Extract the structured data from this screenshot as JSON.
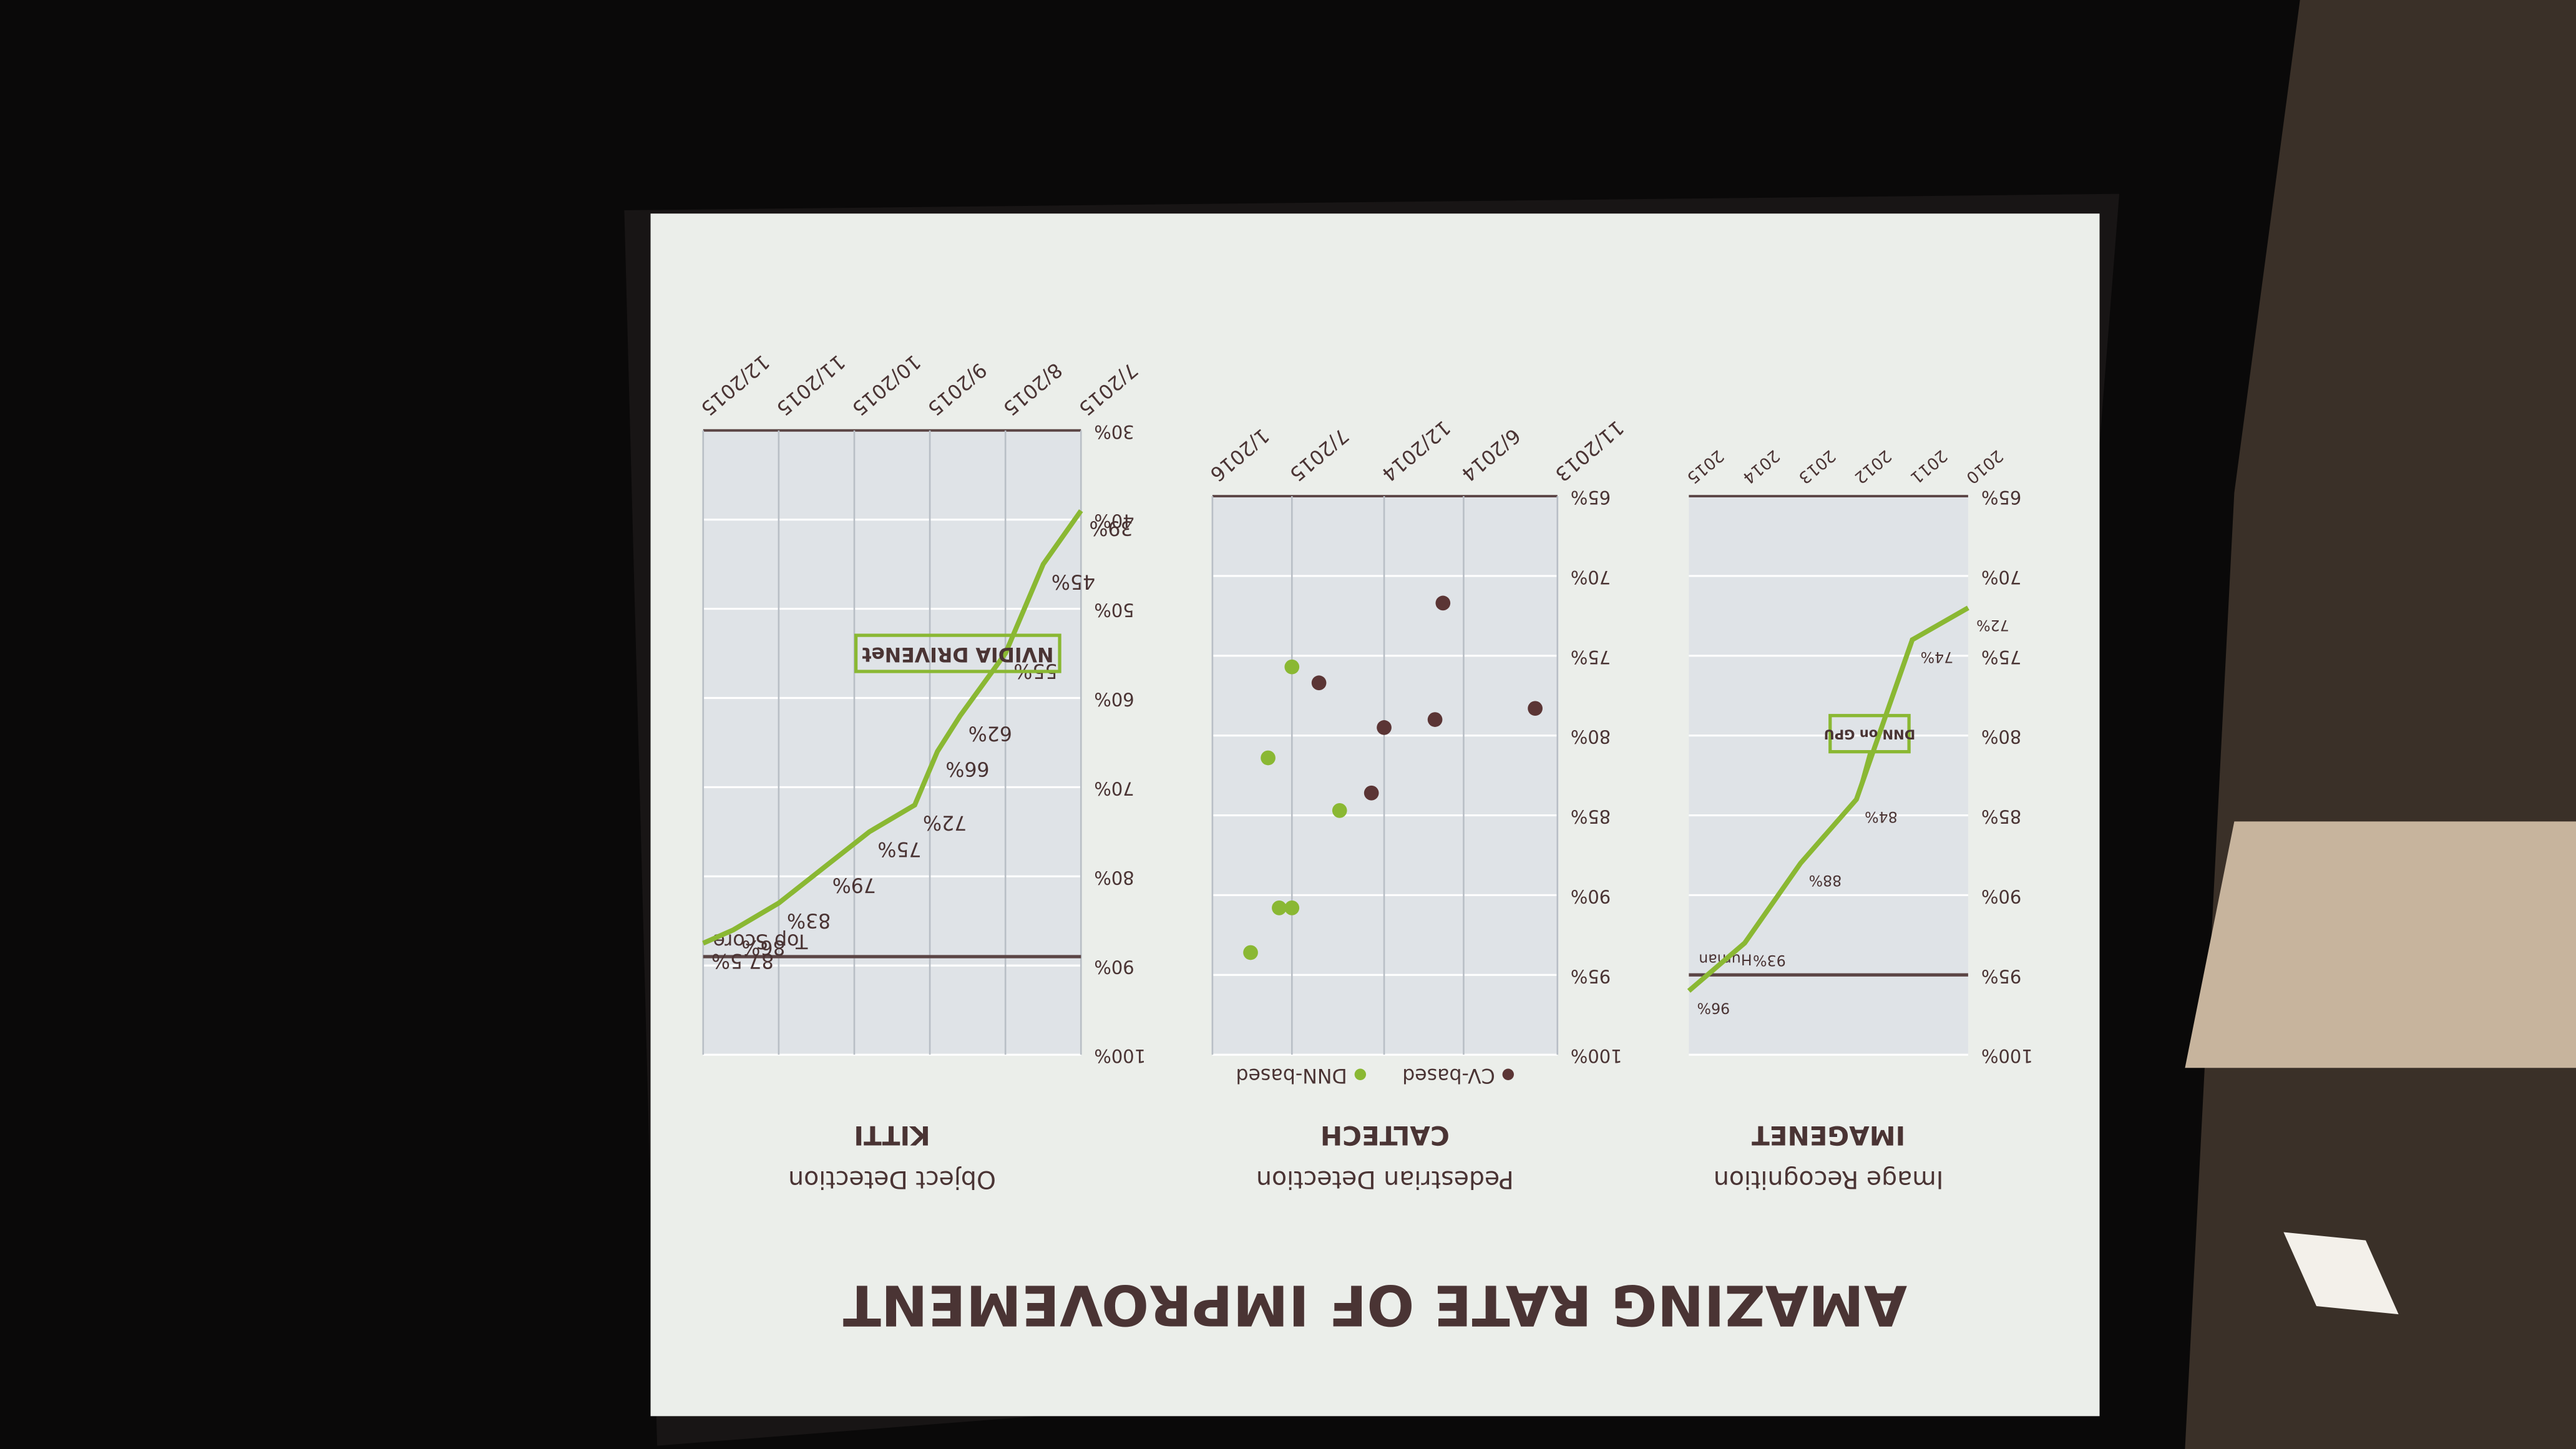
{
  "title": "AMAZING RATE OF IMPROVEMENT",
  "chart_data": [
    {
      "type": "line",
      "title": "IMAGENET",
      "subtitle": "Image Recognition",
      "categories": [
        "2010",
        "2011",
        "2012",
        "2013",
        "2014",
        "2015"
      ],
      "values": [
        72,
        74,
        84,
        88,
        93,
        96
      ],
      "value_labels": [
        "72%",
        "74%",
        "84%",
        "88%",
        "93%",
        "96%"
      ],
      "color": "#8ab833",
      "ylim": [
        65,
        100
      ],
      "yticks": [
        {
          "value": 65,
          "label": "65%"
        },
        {
          "value": 70,
          "label": "70%"
        },
        {
          "value": 75,
          "label": "75%"
        },
        {
          "value": 80,
          "label": "80%"
        },
        {
          "value": 85,
          "label": "85%"
        },
        {
          "value": 90,
          "label": "90%"
        },
        {
          "value": 95,
          "label": "95%"
        },
        {
          "value": 100,
          "label": "100%"
        }
      ],
      "grid": true,
      "reference_lines": [
        {
          "label": "Human",
          "value": 95
        }
      ],
      "annotations": [
        "DNN on GPU"
      ]
    },
    {
      "type": "scatter",
      "title": "CALTECH",
      "subtitle": "Pedestrian Detection",
      "xlim": [
        2013.83,
        2016.0
      ],
      "xticks": [
        {
          "value": 2013.83,
          "label": "11/2013"
        },
        {
          "value": 2014.42,
          "label": "6/2014"
        },
        {
          "value": 2014.92,
          "label": "12/2014"
        },
        {
          "value": 2015.5,
          "label": "7/2015"
        },
        {
          "value": 2016.0,
          "label": "1/2016"
        }
      ],
      "ylim": [
        65,
        100
      ],
      "yticks": [
        {
          "value": 65,
          "label": "65%"
        },
        {
          "value": 70,
          "label": "70%"
        },
        {
          "value": 75,
          "label": "75%"
        },
        {
          "value": 80,
          "label": "80%"
        },
        {
          "value": 85,
          "label": "85%"
        },
        {
          "value": 90,
          "label": "90%"
        },
        {
          "value": 95,
          "label": "95%"
        },
        {
          "value": 100,
          "label": "100%"
        }
      ],
      "grid": true,
      "series": [
        {
          "name": "CV-based",
          "color": "#5b3535",
          "x": [
            2014.55,
            2013.97,
            2014.6,
            2014.92,
            2015.33,
            2015.0
          ],
          "values": [
            71.7,
            78.3,
            79,
            79.5,
            76.7,
            83.6
          ]
        },
        {
          "name": "DNN-based",
          "color": "#8ab833",
          "x": [
            2015.5,
            2015.65,
            2015.2,
            2015.5,
            2015.58,
            2015.76
          ],
          "values": [
            75.7,
            81.4,
            84.7,
            90.8,
            90.8,
            93.6
          ]
        }
      ]
    },
    {
      "type": "line",
      "title": "KITTI",
      "subtitle": "Object Detection",
      "x": [
        7.0,
        7.5,
        8.0,
        8.6,
        8.9,
        9.2,
        9.8,
        10.4,
        11.0,
        11.6,
        12.0
      ],
      "values": [
        39,
        45,
        55,
        62,
        66,
        72,
        75,
        79,
        83,
        86,
        87.5
      ],
      "value_labels": [
        "39%",
        "45%",
        "55%",
        "62%",
        "66%",
        "72%",
        "75%",
        "79%",
        "83%",
        "86%",
        "87.5%"
      ],
      "color": "#8ab833",
      "xlim": [
        7,
        12
      ],
      "xticks": [
        {
          "value": 7,
          "label": "7/2015"
        },
        {
          "value": 8,
          "label": "8/2015"
        },
        {
          "value": 9,
          "label": "9/2015"
        },
        {
          "value": 10,
          "label": "10/2015"
        },
        {
          "value": 11,
          "label": "11/2015"
        },
        {
          "value": 12,
          "label": "12/2015"
        }
      ],
      "ylim": [
        30,
        100
      ],
      "yticks": [
        {
          "value": 30,
          "label": "30%"
        },
        {
          "value": 40,
          "label": "40%"
        },
        {
          "value": 50,
          "label": "50%"
        },
        {
          "value": 60,
          "label": "60%"
        },
        {
          "value": 70,
          "label": "70%"
        },
        {
          "value": 80,
          "label": "80%"
        },
        {
          "value": 90,
          "label": "90%"
        },
        {
          "value": 100,
          "label": "100%"
        }
      ],
      "grid": true,
      "reference_lines": [
        {
          "label": "Top Score",
          "value": 89
        }
      ],
      "annotations": [
        "NVIDIA DRIVENet"
      ]
    }
  ]
}
